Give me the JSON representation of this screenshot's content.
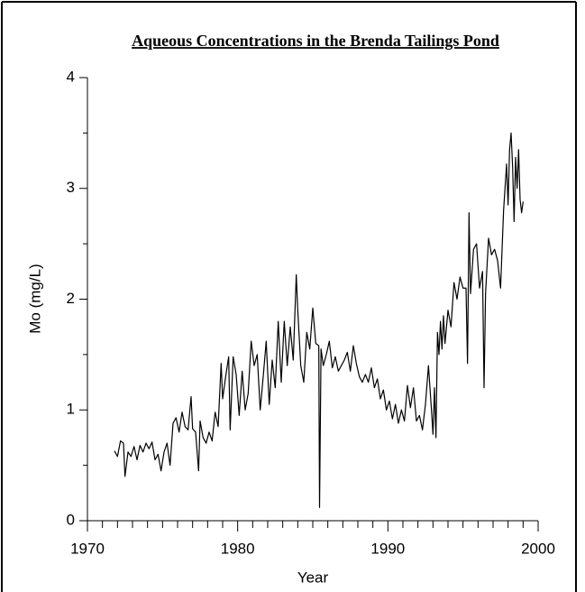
{
  "chart_data": {
    "type": "line",
    "title": "Aqueous Concentrations in the Brenda Tailings Pond",
    "x_label": "Year",
    "y_label": "Mo (mg/L)",
    "color": "#000000",
    "xlim": [
      1970,
      2000
    ],
    "xticks": [
      1970,
      1980,
      1990,
      2000
    ],
    "ylim": [
      0,
      4
    ],
    "yticks": [
      0,
      1,
      2,
      3,
      4
    ],
    "x": [
      1971.8,
      1972.0,
      1972.2,
      1972.4,
      1972.5,
      1972.7,
      1972.9,
      1973.1,
      1973.3,
      1973.5,
      1973.7,
      1973.9,
      1974.1,
      1974.3,
      1974.5,
      1974.7,
      1974.9,
      1975.1,
      1975.3,
      1975.5,
      1975.7,
      1975.9,
      1976.1,
      1976.3,
      1976.5,
      1976.7,
      1976.9,
      1977.0,
      1977.2,
      1977.4,
      1977.5,
      1977.7,
      1977.9,
      1978.1,
      1978.3,
      1978.5,
      1978.7,
      1978.9,
      1979.0,
      1979.2,
      1979.4,
      1979.5,
      1979.7,
      1979.9,
      1980.1,
      1980.3,
      1980.5,
      1980.7,
      1980.9,
      1981.1,
      1981.3,
      1981.5,
      1981.7,
      1981.9,
      1982.1,
      1982.3,
      1982.5,
      1982.7,
      1982.9,
      1983.1,
      1983.3,
      1983.5,
      1983.7,
      1983.9,
      1984.0,
      1984.2,
      1984.4,
      1984.6,
      1984.8,
      1985.0,
      1985.2,
      1985.4,
      1985.45,
      1985.55,
      1985.7,
      1985.9,
      1986.1,
      1986.3,
      1986.5,
      1986.7,
      1986.9,
      1987.1,
      1987.3,
      1987.5,
      1987.7,
      1987.9,
      1988.1,
      1988.3,
      1988.5,
      1988.7,
      1988.9,
      1989.1,
      1989.3,
      1989.5,
      1989.7,
      1989.9,
      1990.1,
      1990.3,
      1990.5,
      1990.7,
      1990.9,
      1991.1,
      1991.3,
      1991.5,
      1991.7,
      1991.9,
      1992.1,
      1992.3,
      1992.5,
      1992.7,
      1992.9,
      1993.0,
      1993.1,
      1993.2,
      1993.3,
      1993.4,
      1993.5,
      1993.6,
      1993.7,
      1993.8,
      1994.0,
      1994.2,
      1994.4,
      1994.6,
      1994.8,
      1995.0,
      1995.2,
      1995.3,
      1995.4,
      1995.5,
      1995.7,
      1995.9,
      1996.1,
      1996.3,
      1996.4,
      1996.5,
      1996.7,
      1996.9,
      1997.1,
      1997.3,
      1997.5,
      1997.7,
      1997.9,
      1998.0,
      1998.1,
      1998.2,
      1998.3,
      1998.4,
      1998.5,
      1998.6,
      1998.7,
      1998.8,
      1998.9,
      1999.0
    ],
    "values": [
      0.63,
      0.58,
      0.72,
      0.7,
      0.4,
      0.62,
      0.58,
      0.67,
      0.55,
      0.68,
      0.62,
      0.7,
      0.65,
      0.71,
      0.55,
      0.6,
      0.45,
      0.62,
      0.7,
      0.5,
      0.88,
      0.93,
      0.8,
      0.98,
      0.85,
      0.82,
      1.12,
      0.83,
      0.8,
      0.45,
      0.9,
      0.75,
      0.7,
      0.8,
      0.72,
      0.98,
      0.85,
      1.42,
      1.1,
      1.3,
      1.48,
      0.82,
      1.48,
      1.32,
      0.95,
      1.35,
      1.0,
      1.15,
      1.62,
      1.4,
      1.5,
      1.0,
      1.3,
      1.62,
      1.05,
      1.45,
      1.2,
      1.8,
      1.25,
      1.8,
      1.4,
      1.75,
      1.45,
      2.22,
      1.9,
      1.4,
      1.25,
      1.7,
      1.55,
      1.92,
      1.6,
      1.58,
      0.12,
      1.55,
      1.4,
      1.5,
      1.62,
      1.38,
      1.48,
      1.35,
      1.4,
      1.45,
      1.52,
      1.35,
      1.58,
      1.42,
      1.3,
      1.25,
      1.32,
      1.25,
      1.38,
      1.2,
      1.28,
      1.1,
      1.18,
      1.0,
      1.08,
      0.92,
      1.05,
      0.88,
      1.0,
      0.9,
      1.22,
      1.02,
      1.2,
      0.9,
      0.95,
      0.82,
      1.05,
      1.4,
      1.0,
      0.78,
      1.2,
      0.75,
      1.7,
      1.5,
      1.8,
      1.55,
      1.85,
      1.6,
      1.9,
      1.75,
      2.15,
      2.0,
      2.2,
      2.1,
      2.1,
      1.42,
      2.78,
      2.05,
      2.45,
      2.5,
      2.1,
      2.25,
      1.2,
      2.05,
      2.55,
      2.4,
      2.45,
      2.35,
      2.1,
      2.8,
      3.22,
      2.85,
      3.35,
      3.5,
      3.2,
      2.7,
      3.28,
      3.0,
      3.35,
      2.9,
      2.78,
      2.88
    ]
  }
}
